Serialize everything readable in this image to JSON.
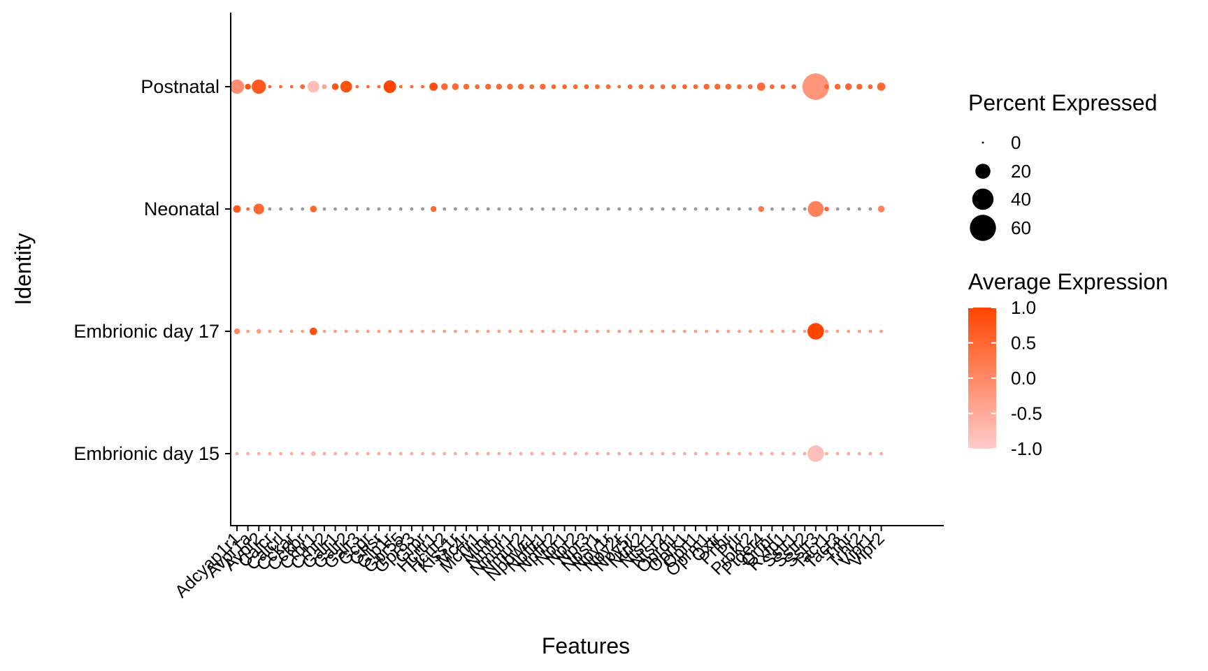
{
  "chart_data": {
    "type": "dotplot",
    "title": "",
    "xlabel": "Features",
    "ylabel": "Identity",
    "identities": [
      "Embrionic day 15",
      "Embrionic day 17",
      "Neonatal",
      "Postnatal"
    ],
    "features": [
      "Adcyap1r1",
      "Avpr1a",
      "Avpr2",
      "Calcr",
      "Calcrl",
      "Cckar",
      "Cckbr",
      "Crhr1",
      "Crhr2",
      "Galr1",
      "Galr2",
      "Galr3",
      "Gcgr",
      "Ghsr",
      "Glp1r",
      "Gpr55",
      "Gpr83",
      "Grpr",
      "Hcrtr1",
      "Hcrtr2",
      "Kiss1r",
      "Mc4r",
      "Mchr1",
      "Mlnr",
      "Nmbr",
      "Nmur1",
      "Nmur2",
      "Npbwr1",
      "Npffr1",
      "Npffr2",
      "Npr1",
      "Npr2",
      "Npr3",
      "Npsr1",
      "Npy1r",
      "Npy2r",
      "Npy5r",
      "Ntrk2",
      "Ntsr1",
      "Ntsr2",
      "Oprd1",
      "Oprk1",
      "Oprl1",
      "Oprm1",
      "Oxtr",
      "Prlhr",
      "Prlr",
      "Prokr2",
      "Ptger4",
      "Qrfpr",
      "Rxfp1",
      "Sstr1",
      "Sstr2",
      "Sstr3",
      "Tacr1",
      "Tacr3",
      "Trhr",
      "Trhr2",
      "Vipr1",
      "Vipr2"
    ],
    "values": {
      "Postnatal": {
        "pct": [
          18,
          3,
          18,
          1,
          1,
          1,
          2,
          12,
          2,
          4,
          12,
          1,
          1,
          1,
          14,
          1,
          1,
          1,
          6,
          4,
          4,
          3,
          2,
          3,
          3,
          3,
          3,
          2,
          3,
          2,
          2,
          2,
          2,
          2,
          2,
          1,
          2,
          2,
          2,
          2,
          2,
          2,
          2,
          3,
          3,
          3,
          2,
          2,
          6,
          2,
          2,
          2,
          2,
          62,
          2,
          3,
          4,
          3,
          2,
          6
        ],
        "avg": [
          -0.1,
          0.8,
          0.7,
          0.5,
          0.5,
          0.5,
          0.5,
          -0.8,
          -0.4,
          0.8,
          0.8,
          0.5,
          0.5,
          0.5,
          1.0,
          0.5,
          0.5,
          0.5,
          0.9,
          0.5,
          0.5,
          0.5,
          0.5,
          0.5,
          0.5,
          0.5,
          0.5,
          0.5,
          0.5,
          0.5,
          0.5,
          0.5,
          0.5,
          0.5,
          0.5,
          0.5,
          0.5,
          0.5,
          0.5,
          0.5,
          0.5,
          0.5,
          0.5,
          0.5,
          0.5,
          0.5,
          0.5,
          0.5,
          0.5,
          0.5,
          0.5,
          0.5,
          0.5,
          -0.2,
          0.5,
          0.5,
          0.5,
          0.5,
          0.5,
          0.5
        ]
      },
      "Neonatal": {
        "pct": [
          5,
          1,
          10,
          1,
          1,
          1,
          1,
          4,
          1,
          1,
          1,
          1,
          1,
          1,
          1,
          1,
          1,
          1,
          3,
          1,
          1,
          1,
          1,
          1,
          1,
          1,
          1,
          1,
          1,
          1,
          1,
          1,
          1,
          1,
          1,
          1,
          1,
          1,
          1,
          1,
          1,
          1,
          1,
          1,
          1,
          1,
          1,
          1,
          3,
          1,
          1,
          1,
          1,
          22,
          2,
          1,
          1,
          1,
          1,
          4
        ],
        "avg": [
          0.7,
          0.5,
          0.5,
          0.0,
          0.0,
          0.0,
          0.0,
          0.5,
          0.0,
          0.0,
          0.0,
          0.0,
          0.0,
          0.0,
          0.0,
          0.0,
          0.0,
          0.0,
          0.5,
          0.0,
          0.0,
          0.0,
          0.0,
          0.0,
          0.0,
          0.0,
          0.0,
          0.0,
          0.0,
          0.0,
          0.0,
          0.0,
          0.0,
          0.0,
          0.0,
          0.0,
          0.0,
          0.0,
          0.0,
          0.0,
          0.0,
          0.0,
          0.0,
          0.0,
          0.0,
          0.0,
          0.0,
          0.0,
          0.3,
          0.0,
          0.0,
          0.0,
          0.0,
          0.1,
          0.5,
          0.0,
          0.0,
          0.0,
          0.0,
          0.1
        ]
      },
      "Embrionic day 17": {
        "pct": [
          3,
          1,
          2,
          1,
          1,
          1,
          1,
          5,
          1,
          1,
          1,
          1,
          1,
          1,
          1,
          1,
          1,
          1,
          1,
          1,
          1,
          1,
          1,
          1,
          1,
          1,
          1,
          1,
          1,
          1,
          1,
          1,
          1,
          1,
          1,
          1,
          1,
          1,
          1,
          1,
          1,
          1,
          1,
          1,
          1,
          1,
          1,
          1,
          1,
          1,
          1,
          1,
          1,
          24,
          1,
          1,
          1,
          1,
          1,
          1
        ],
        "avg": [
          0.0,
          -0.3,
          -0.3,
          -0.3,
          -0.3,
          -0.3,
          -0.3,
          0.8,
          -0.3,
          -0.3,
          -0.3,
          -0.3,
          -0.3,
          -0.3,
          -0.3,
          -0.3,
          -0.3,
          -0.3,
          -0.3,
          -0.3,
          -0.3,
          -0.3,
          -0.3,
          -0.3,
          -0.3,
          -0.3,
          -0.3,
          -0.3,
          -0.3,
          -0.3,
          -0.3,
          -0.3,
          -0.3,
          -0.3,
          -0.3,
          -0.3,
          -0.3,
          -0.3,
          -0.3,
          -0.3,
          -0.3,
          -0.3,
          -0.3,
          -0.3,
          -0.3,
          -0.3,
          -0.3,
          -0.3,
          -0.3,
          -0.3,
          -0.3,
          -0.3,
          -0.3,
          1.0,
          -0.3,
          -0.3,
          -0.3,
          -0.3,
          -0.3,
          -0.3
        ]
      },
      "Embrionic day 15": {
        "pct": [
          1,
          1,
          1,
          1,
          1,
          1,
          1,
          2,
          1,
          1,
          1,
          1,
          1,
          1,
          1,
          1,
          1,
          1,
          1,
          1,
          1,
          1,
          1,
          1,
          1,
          1,
          1,
          1,
          1,
          1,
          1,
          1,
          1,
          1,
          1,
          1,
          1,
          1,
          1,
          1,
          1,
          1,
          1,
          1,
          1,
          1,
          1,
          1,
          1,
          1,
          1,
          1,
          1,
          24,
          1,
          1,
          1,
          1,
          1,
          1
        ],
        "avg": [
          -0.5,
          -0.5,
          -0.5,
          -0.5,
          -0.5,
          -0.5,
          -0.5,
          -0.7,
          -0.5,
          -0.5,
          -0.5,
          -0.5,
          -0.5,
          -0.5,
          -0.5,
          -0.5,
          -0.5,
          -0.5,
          -0.5,
          -0.5,
          -0.5,
          -0.5,
          -0.5,
          -0.5,
          -0.5,
          -0.5,
          -0.5,
          -0.5,
          -0.5,
          -0.5,
          -0.5,
          -0.5,
          -0.5,
          -0.5,
          -0.5,
          -0.5,
          -0.5,
          -0.5,
          -0.5,
          -0.5,
          -0.5,
          -0.5,
          -0.5,
          -0.5,
          -0.5,
          -0.5,
          -0.5,
          -0.5,
          -0.5,
          -0.5,
          -0.5,
          -0.5,
          -0.5,
          -0.8,
          -0.5,
          -0.5,
          -0.5,
          -0.5,
          -0.5,
          -0.5
        ]
      }
    },
    "legend": {
      "size_title": "Percent Expressed",
      "size_breaks": [
        0,
        20,
        40,
        60
      ],
      "color_title": "Average Expression",
      "color_breaks": [
        1.0,
        0.5,
        0.0,
        -0.5,
        -1.0
      ],
      "color_range": [
        -1.0,
        1.0
      ],
      "placement": "right"
    },
    "colors": {
      "low": "#ffcccc",
      "high": "#ff4500",
      "axis": "#000000"
    }
  }
}
